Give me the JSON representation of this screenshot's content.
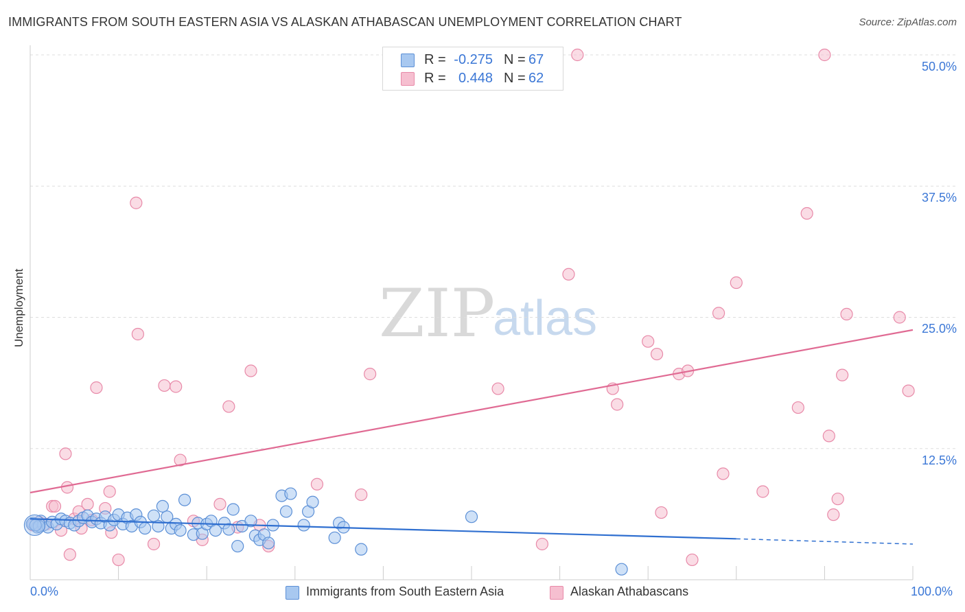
{
  "chart_data": {
    "type": "scatter",
    "title": "IMMIGRANTS FROM SOUTH EASTERN ASIA VS ALASKAN ATHABASCAN UNEMPLOYMENT CORRELATION CHART",
    "source": "Source: ZipAtlas.com",
    "xlabel": "",
    "ylabel": "Unemployment",
    "xlim": [
      0,
      100
    ],
    "ylim": [
      0,
      50
    ],
    "x_tick_labels": [
      "0.0%",
      "100.0%"
    ],
    "y_ticks": [
      12.5,
      25.0,
      37.5,
      50.0
    ],
    "y_tick_labels": [
      "12.5%",
      "25.0%",
      "37.5%",
      "50.0%"
    ],
    "colors": {
      "blue_fill": "#a8c8f0",
      "blue_stroke": "#5b8fd6",
      "blue_line": "#2f6fd0",
      "pink_fill": "#f6bfd0",
      "pink_stroke": "#e889a8",
      "pink_line": "#e06a93",
      "grid": "#dddddd",
      "axis_text": "#3b77d6"
    },
    "stats": [
      {
        "r_label": "R =",
        "r": "-0.275",
        "n_label": "N =",
        "n": "67"
      },
      {
        "r_label": "R =",
        "r": "0.448",
        "n_label": "N =",
        "n": "62"
      }
    ],
    "series": [
      {
        "name": "Immigrants from South Eastern Asia",
        "color": "blue",
        "trend": {
          "x0": 0,
          "y0": 5.8,
          "x1": 80,
          "y1": 3.9,
          "x_dash_end": 100,
          "y_dash_end": 3.4
        },
        "points": [
          [
            0.3,
            5.4
          ],
          [
            0.8,
            5.0
          ],
          [
            1.2,
            5.6
          ],
          [
            1.5,
            5.2
          ],
          [
            2.0,
            5.0
          ],
          [
            2.5,
            5.5
          ],
          [
            3.0,
            5.3
          ],
          [
            3.5,
            5.8
          ],
          [
            4.0,
            5.6
          ],
          [
            4.5,
            5.4
          ],
          [
            5.0,
            5.2
          ],
          [
            5.5,
            5.6
          ],
          [
            6.0,
            5.9
          ],
          [
            6.5,
            6.1
          ],
          [
            7.0,
            5.5
          ],
          [
            7.5,
            5.8
          ],
          [
            8.0,
            5.4
          ],
          [
            8.5,
            6.0
          ],
          [
            9.0,
            5.2
          ],
          [
            9.5,
            5.7
          ],
          [
            10.0,
            6.2
          ],
          [
            10.5,
            5.3
          ],
          [
            11.0,
            5.9
          ],
          [
            11.5,
            5.1
          ],
          [
            12.0,
            6.2
          ],
          [
            12.5,
            5.5
          ],
          [
            13.0,
            4.9
          ],
          [
            14.0,
            6.1
          ],
          [
            14.5,
            5.1
          ],
          [
            15.0,
            7.0
          ],
          [
            15.5,
            6.0
          ],
          [
            16.0,
            4.9
          ],
          [
            16.5,
            5.3
          ],
          [
            17.0,
            4.7
          ],
          [
            17.5,
            7.6
          ],
          [
            18.5,
            4.3
          ],
          [
            19.0,
            5.4
          ],
          [
            19.5,
            4.4
          ],
          [
            20.0,
            5.3
          ],
          [
            20.5,
            5.6
          ],
          [
            21.0,
            4.7
          ],
          [
            22.0,
            5.4
          ],
          [
            22.5,
            4.8
          ],
          [
            23.0,
            6.7
          ],
          [
            23.5,
            3.2
          ],
          [
            24.0,
            5.1
          ],
          [
            25.0,
            5.6
          ],
          [
            25.5,
            4.2
          ],
          [
            26.0,
            3.8
          ],
          [
            26.5,
            4.3
          ],
          [
            27.0,
            3.5
          ],
          [
            27.5,
            5.2
          ],
          [
            28.5,
            8.0
          ],
          [
            29.0,
            6.5
          ],
          [
            29.5,
            8.2
          ],
          [
            31.0,
            5.2
          ],
          [
            31.5,
            6.5
          ],
          [
            32.0,
            7.4
          ],
          [
            34.5,
            4.0
          ],
          [
            35.0,
            5.4
          ],
          [
            35.5,
            5.0
          ],
          [
            37.5,
            2.9
          ],
          [
            50.0,
            6.0
          ],
          [
            67.0,
            1.0
          ],
          [
            0.2,
            5.3
          ],
          [
            1.0,
            5.1
          ],
          [
            0.6,
            5.2
          ]
        ]
      },
      {
        "name": "Alaskan Athabascans",
        "color": "pink",
        "trend": {
          "x0": 0,
          "y0": 8.3,
          "x1": 100,
          "y1": 23.8
        },
        "points": [
          [
            0.3,
            5.2
          ],
          [
            1.0,
            5.5
          ],
          [
            1.8,
            5.3
          ],
          [
            2.5,
            7.0
          ],
          [
            2.8,
            7.0
          ],
          [
            3.5,
            4.7
          ],
          [
            4.0,
            12.0
          ],
          [
            4.2,
            8.8
          ],
          [
            4.5,
            2.4
          ],
          [
            5.0,
            5.8
          ],
          [
            5.5,
            6.5
          ],
          [
            5.8,
            4.9
          ],
          [
            6.5,
            7.2
          ],
          [
            7.0,
            5.7
          ],
          [
            7.5,
            18.3
          ],
          [
            8.5,
            6.8
          ],
          [
            9.0,
            8.4
          ],
          [
            9.2,
            4.5
          ],
          [
            10.0,
            1.9
          ],
          [
            12.0,
            35.9
          ],
          [
            12.2,
            23.4
          ],
          [
            14.0,
            3.4
          ],
          [
            15.2,
            18.5
          ],
          [
            16.5,
            18.4
          ],
          [
            17.0,
            11.4
          ],
          [
            18.5,
            5.6
          ],
          [
            19.5,
            3.8
          ],
          [
            21.5,
            7.2
          ],
          [
            22.5,
            16.5
          ],
          [
            23.5,
            5.0
          ],
          [
            25.0,
            19.9
          ],
          [
            26.0,
            5.2
          ],
          [
            27.0,
            3.2
          ],
          [
            32.5,
            9.1
          ],
          [
            37.5,
            8.1
          ],
          [
            38.5,
            19.6
          ],
          [
            53.0,
            18.2
          ],
          [
            58.0,
            3.4
          ],
          [
            61.0,
            29.1
          ],
          [
            62.0,
            50.0
          ],
          [
            66.0,
            18.2
          ],
          [
            66.5,
            16.7
          ],
          [
            70.0,
            22.7
          ],
          [
            71.0,
            21.5
          ],
          [
            71.5,
            6.4
          ],
          [
            73.5,
            19.6
          ],
          [
            74.5,
            19.9
          ],
          [
            75.0,
            1.9
          ],
          [
            78.0,
            25.4
          ],
          [
            78.5,
            10.1
          ],
          [
            80.0,
            28.3
          ],
          [
            83.0,
            8.4
          ],
          [
            87.0,
            16.4
          ],
          [
            88.0,
            34.9
          ],
          [
            90.0,
            50.0
          ],
          [
            90.5,
            13.7
          ],
          [
            91.0,
            6.2
          ],
          [
            91.5,
            7.7
          ],
          [
            92.0,
            19.5
          ],
          [
            92.5,
            25.3
          ],
          [
            98.5,
            25.0
          ],
          [
            99.5,
            18.0
          ]
        ]
      }
    ],
    "watermark": {
      "zip": "ZIP",
      "atlas": "atlas"
    }
  }
}
